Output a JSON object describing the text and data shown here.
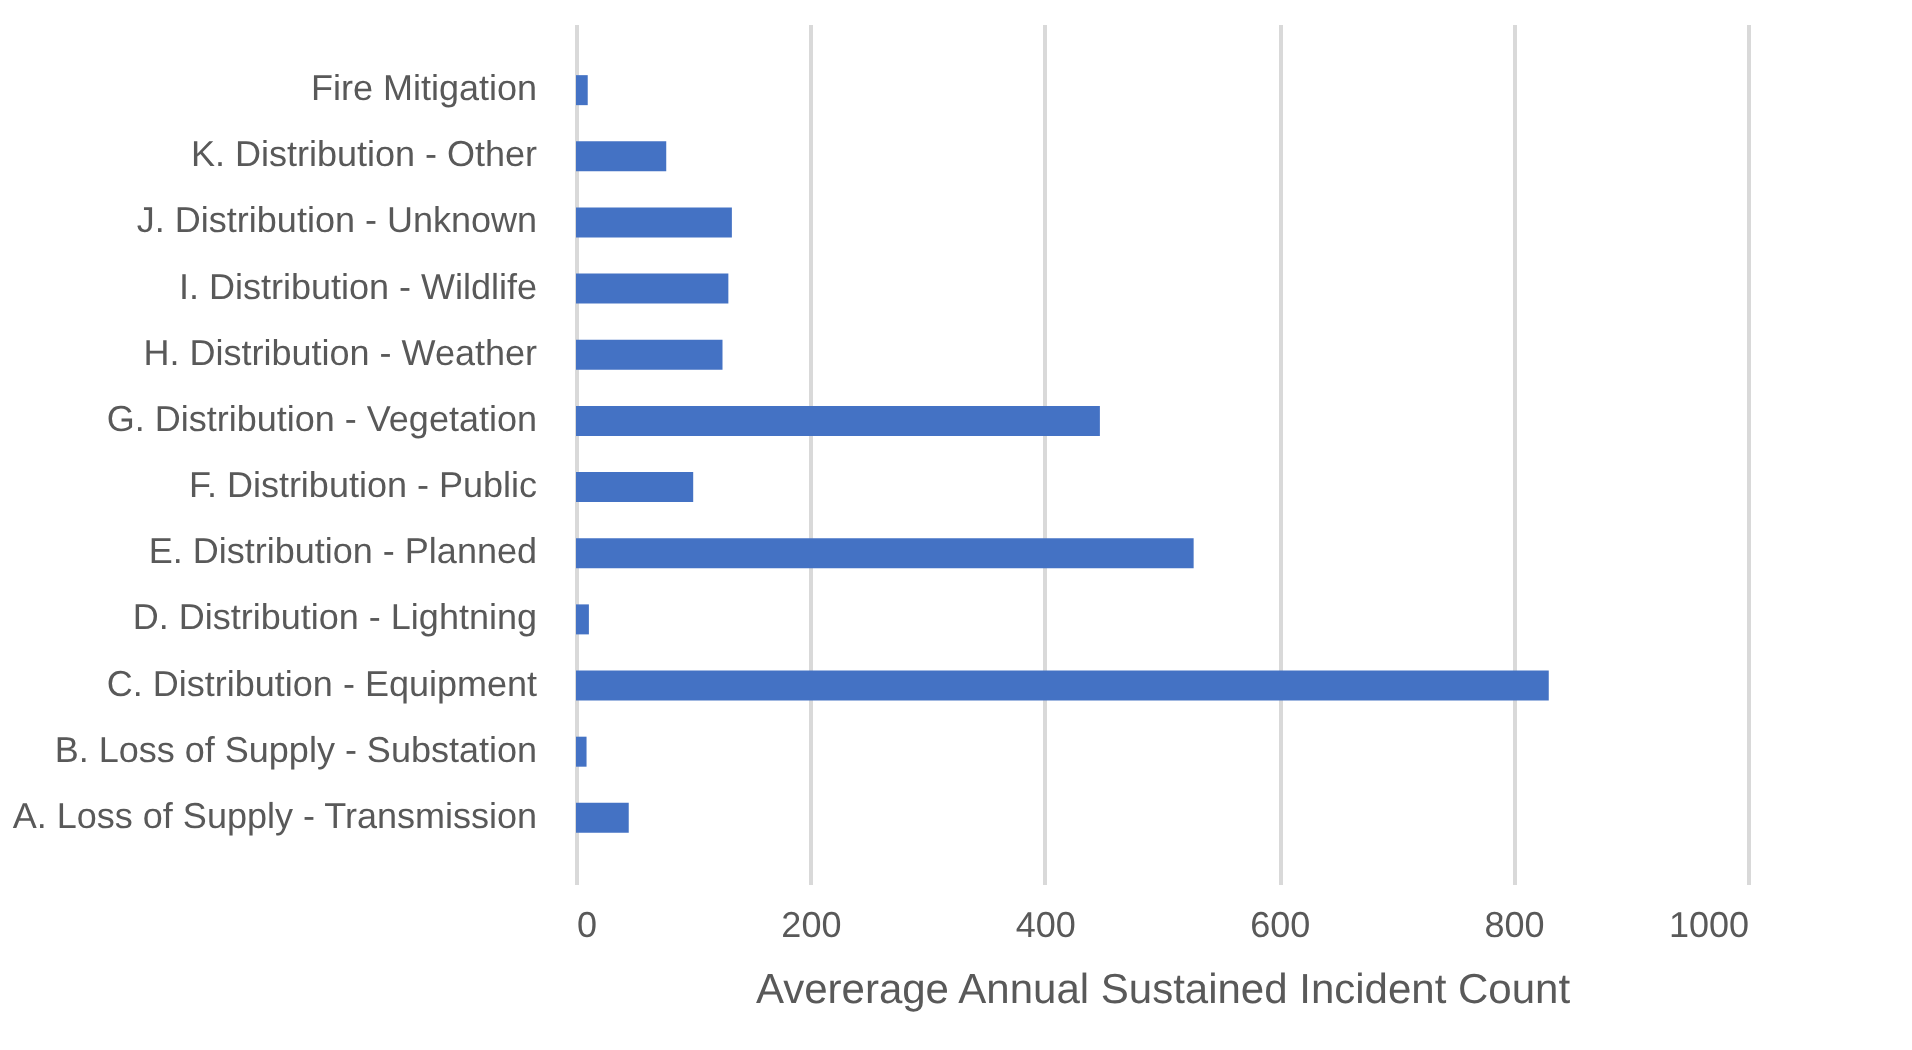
{
  "chart_data": {
    "type": "bar",
    "orientation": "horizontal",
    "categories": [
      "Fire Mitigation",
      "K. Distribution - Other",
      "J. Distribution - Unknown",
      "I. Distribution - Wildlife",
      "H. Distribution - Weather",
      "G. Distribution - Vegetation",
      "F. Distribution - Public",
      "E. Distribution - Planned",
      "D. Distribution - Lightning",
      "C. Distribution - Equipment",
      "B. Loss of Supply - Substation",
      "A. Loss of Supply - Transmission"
    ],
    "values": [
      10,
      77,
      133,
      130,
      125,
      447,
      100,
      527,
      11,
      830,
      9,
      45
    ],
    "color": "#4472c4",
    "xlabel": "Avererage Annual Sustained Incident Count",
    "xlim": [
      0,
      1000
    ],
    "xticks": [
      0,
      200,
      400,
      600,
      800,
      1000
    ],
    "grid": "x"
  }
}
